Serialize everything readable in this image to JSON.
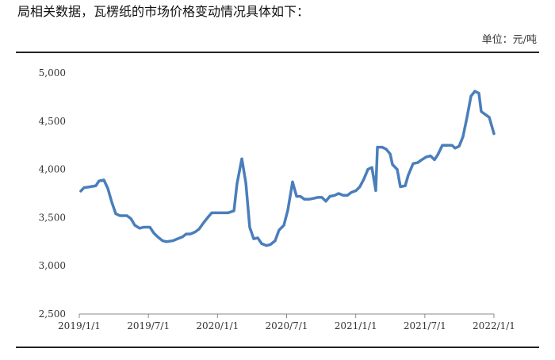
{
  "text": "局相关数据，瓦楞纸的市场价格变动情况具体如下：",
  "chart_data": {
    "type": "line",
    "y_label": "单位：元/吨",
    "xlim": [
      2019,
      2022
    ],
    "xticks": [
      {
        "value": 2019,
        "label": "2019/1/1"
      },
      {
        "value": 2019.5,
        "label": "2019/7/1"
      },
      {
        "value": 2020,
        "label": "2020/1/1"
      },
      {
        "value": 2020.5,
        "label": "2020/7/1"
      },
      {
        "value": 2021,
        "label": "2021/1/1"
      },
      {
        "value": 2021.5,
        "label": "2021/7/1"
      },
      {
        "value": 2022,
        "label": "2022/1/1"
      }
    ],
    "ylim": [
      2500,
      5000
    ],
    "yticks": [
      {
        "value": 2500,
        "label": "2,500"
      },
      {
        "value": 3000,
        "label": "3,000"
      },
      {
        "value": 3500,
        "label": "3,500"
      },
      {
        "value": 4000,
        "label": "4,000"
      },
      {
        "value": 4500,
        "label": "4,500"
      },
      {
        "value": 5000,
        "label": "5,000"
      }
    ],
    "grid": false,
    "x": [
      2019.011,
      2019.034,
      2019.08,
      2019.12,
      2019.143,
      2019.178,
      2019.207,
      2019.235,
      2019.264,
      2019.293,
      2019.344,
      2019.373,
      2019.402,
      2019.436,
      2019.465,
      2019.511,
      2019.539,
      2019.568,
      2019.602,
      2019.631,
      2019.677,
      2019.711,
      2019.746,
      2019.774,
      2019.803,
      2019.837,
      2019.866,
      2019.901,
      2019.929,
      2019.958,
      2020.078,
      2020.119,
      2020.141,
      2020.176,
      2020.205,
      2020.233,
      2020.262,
      2020.291,
      2020.319,
      2020.354,
      2020.382,
      2020.417,
      2020.445,
      2020.48,
      2020.509,
      2020.543,
      2020.572,
      2020.6,
      2020.629,
      2020.663,
      2020.698,
      2020.727,
      2020.755,
      2020.784,
      2020.813,
      2020.847,
      2020.876,
      2020.91,
      2020.939,
      2020.967,
      2021.002,
      2021.03,
      2021.059,
      2021.088,
      2021.117,
      2021.145,
      2021.157,
      2021.191,
      2021.22,
      2021.249,
      2021.266,
      2021.3,
      2021.323,
      2021.358,
      2021.38,
      2021.415,
      2021.449,
      2021.478,
      2021.512,
      2021.541,
      2021.57,
      2021.593,
      2021.627,
      2021.662,
      2021.696,
      2021.719,
      2021.748,
      2021.776,
      2021.805,
      2021.834,
      2021.862,
      2021.891,
      2021.908,
      2021.937,
      2021.966,
      2022.0
    ],
    "series": [
      {
        "name": "瓦楞纸",
        "color": "#4a7ebb",
        "values": [
          3775,
          3810,
          3820,
          3830,
          3880,
          3890,
          3800,
          3660,
          3540,
          3520,
          3520,
          3490,
          3420,
          3390,
          3400,
          3400,
          3340,
          3300,
          3260,
          3250,
          3260,
          3280,
          3300,
          3330,
          3330,
          3350,
          3380,
          3450,
          3500,
          3550,
          3550,
          3570,
          3850,
          4110,
          3860,
          3400,
          3280,
          3290,
          3230,
          3210,
          3220,
          3260,
          3370,
          3420,
          3580,
          3870,
          3720,
          3720,
          3690,
          3690,
          3700,
          3710,
          3710,
          3670,
          3720,
          3730,
          3750,
          3730,
          3730,
          3760,
          3780,
          3820,
          3900,
          4000,
          4020,
          3780,
          4230,
          4230,
          4210,
          4160,
          4050,
          4000,
          3820,
          3830,
          3940,
          4060,
          4070,
          4100,
          4130,
          4140,
          4100,
          4150,
          4250,
          4250,
          4250,
          4220,
          4240,
          4340,
          4540,
          4760,
          4810,
          4790,
          4600,
          4570,
          4540,
          4370
        ]
      }
    ]
  }
}
